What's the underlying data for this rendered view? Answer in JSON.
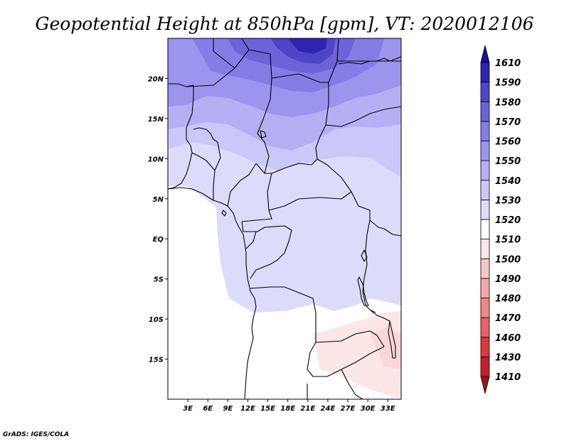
{
  "title": "Geopotential Height at 850hPa [gpm], VT: 2020012106",
  "credit": "GrADS: IGES/COLA",
  "chart_data": {
    "type": "heatmap",
    "variable": "Geopotential Height",
    "level": "850hPa",
    "units": "gpm",
    "valid_time": "2020012106",
    "lon_range": [
      0,
      35
    ],
    "lat_range": [
      -20,
      25
    ],
    "xticks": [
      {
        "value": 3,
        "label": "3E"
      },
      {
        "value": 6,
        "label": "6E"
      },
      {
        "value": 9,
        "label": "9E"
      },
      {
        "value": 12,
        "label": "12E"
      },
      {
        "value": 15,
        "label": "15E"
      },
      {
        "value": 18,
        "label": "18E"
      },
      {
        "value": 21,
        "label": "21E"
      },
      {
        "value": 24,
        "label": "24E"
      },
      {
        "value": 27,
        "label": "27E"
      },
      {
        "value": 30,
        "label": "30E"
      },
      {
        "value": 33,
        "label": "33E"
      }
    ],
    "yticks": [
      {
        "value": 20,
        "label": "20N"
      },
      {
        "value": 15,
        "label": "15N"
      },
      {
        "value": 10,
        "label": "10N"
      },
      {
        "value": 5,
        "label": "5N"
      },
      {
        "value": 0,
        "label": "EQ"
      },
      {
        "value": -5,
        "label": "5S"
      },
      {
        "value": -10,
        "label": "10S"
      },
      {
        "value": -15,
        "label": "15S"
      }
    ],
    "colorbar": {
      "orientation": "vertical",
      "placement": "right",
      "levels": [
        1410,
        1430,
        1460,
        1470,
        1480,
        1490,
        1500,
        1510,
        1520,
        1530,
        1540,
        1550,
        1560,
        1570,
        1580,
        1590,
        1610
      ],
      "colors": [
        "#a0161a",
        "#c12128",
        "#d93b3b",
        "#e46565",
        "#ec8888",
        "#f2a8a8",
        "#f7c7c7",
        "#fce6e6",
        "#ffffff",
        "#dcdcfa",
        "#c9c8f8",
        "#b5b0f4",
        "#9b95ee",
        "#857de6",
        "#6c63db",
        "#4d45c8",
        "#2e24b0",
        "#1c0f98"
      ]
    }
  }
}
